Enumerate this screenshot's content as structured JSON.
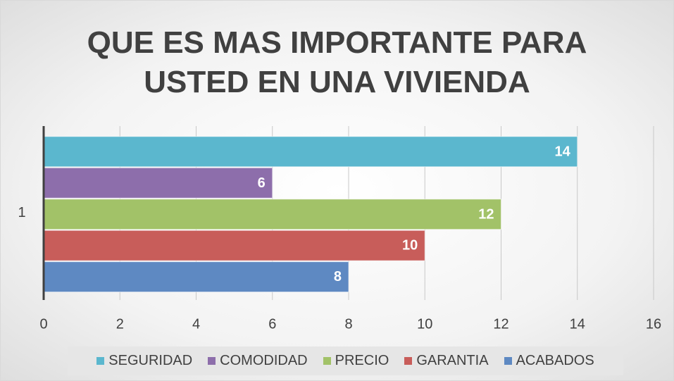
{
  "chart_data": {
    "type": "hbar",
    "title": "QUE ES MAS IMPORTANTE PARA USTED EN UNA VIVIENDA",
    "categories": [
      "1"
    ],
    "series": [
      {
        "name": "SEGURIDAD",
        "color": "#5bb7ce",
        "values": [
          14
        ]
      },
      {
        "name": "COMODIDAD",
        "color": "#8d6eab",
        "values": [
          6
        ]
      },
      {
        "name": "PRECIO",
        "color": "#a2c268",
        "values": [
          12
        ]
      },
      {
        "name": "GARANTIA",
        "color": "#c85d5a",
        "values": [
          10
        ]
      },
      {
        "name": "ACABADOS",
        "color": "#5e89c2",
        "values": [
          8
        ]
      }
    ],
    "xlim": [
      0,
      16
    ],
    "xticks": [
      0,
      2,
      4,
      6,
      8,
      10,
      12,
      14,
      16
    ],
    "grid": true,
    "legend": "bottom"
  }
}
